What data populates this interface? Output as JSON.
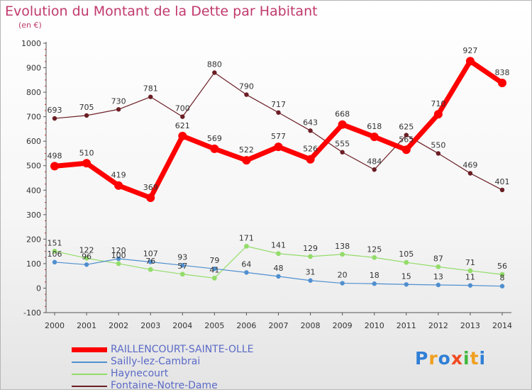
{
  "chart_data": {
    "type": "line",
    "title": "Evolution du Montant de la Dette par Habitant",
    "subtitle": "(en €)",
    "x": [
      "2000",
      "2001",
      "2002",
      "2003",
      "2004",
      "2005",
      "2006",
      "2007",
      "2008",
      "2009",
      "2010",
      "2011",
      "2012",
      "2013",
      "2014"
    ],
    "ylim": [
      -100,
      1000
    ],
    "yticks": [
      -100,
      0,
      100,
      200,
      300,
      400,
      500,
      600,
      700,
      800,
      900,
      1000
    ],
    "grid": false,
    "legend_position": "bottom-left",
    "series": [
      {
        "name": "RAILLENCOURT-SAINTE-OLLE",
        "color": "#ff0000",
        "values": [
          498,
          510,
          419,
          369,
          621,
          569,
          522,
          577,
          526,
          668,
          618,
          565,
          710,
          927,
          838
        ]
      },
      {
        "name": "Sailly-lez-Cambrai",
        "color": "#4f8fd0",
        "values": [
          106,
          96,
          120,
          107,
          93,
          79,
          64,
          48,
          31,
          20,
          18,
          15,
          13,
          11,
          8
        ]
      },
      {
        "name": "Haynecourt",
        "color": "#93dc6a",
        "values": [
          151,
          122,
          100,
          76,
          57,
          41,
          171,
          141,
          129,
          138,
          125,
          105,
          87,
          71,
          56
        ]
      },
      {
        "name": "Fontaine-Notre-Dame",
        "color": "#6b1e24",
        "values": [
          693,
          705,
          730,
          781,
          700,
          880,
          790,
          717,
          643,
          555,
          484,
          625,
          550,
          469,
          401
        ]
      }
    ]
  },
  "logo": {
    "text": "Proxiti",
    "colors": [
      "#2f7fd6",
      "#f0a020",
      "#2f7fd6",
      "#f04a20",
      "#3fb83a",
      "#f0a020",
      "#2f7fd6"
    ]
  }
}
